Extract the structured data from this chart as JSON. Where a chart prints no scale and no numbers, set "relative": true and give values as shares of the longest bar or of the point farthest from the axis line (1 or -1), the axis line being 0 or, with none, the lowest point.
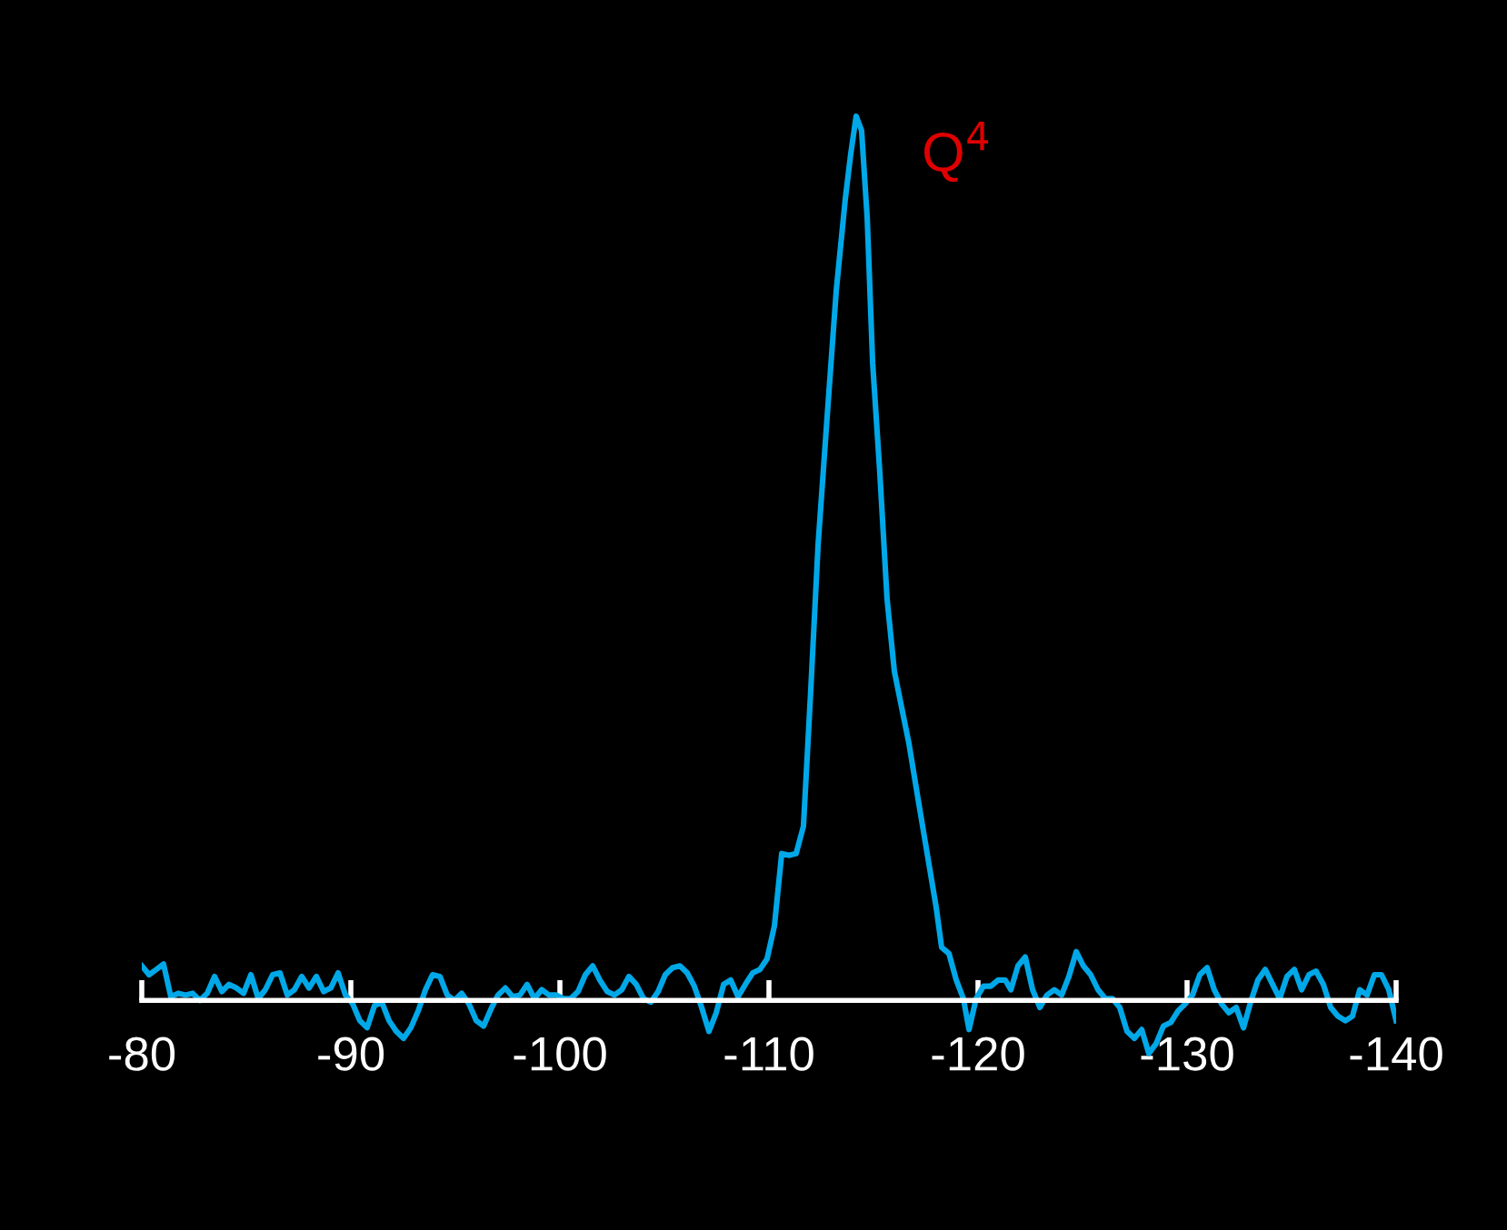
{
  "chart_data": {
    "type": "line",
    "relative": true,
    "xlim": [
      -80,
      -140
    ],
    "xticks": [
      -80,
      -90,
      -100,
      -110,
      -120,
      -130,
      -140
    ],
    "marker": "none",
    "line_style": "solid",
    "annotations": [
      {
        "text": "Q$^{4}$",
        "x": -114.17,
        "y": 1.0
      }
    ],
    "series": [
      {
        "color": "#00a8e8",
        "x": [
          -80.0,
          -80.35,
          -80.7,
          -81.04,
          -81.39,
          -81.74,
          -82.09,
          -82.43,
          -82.78,
          -83.13,
          -83.48,
          -83.83,
          -84.17,
          -84.52,
          -84.87,
          -85.22,
          -85.57,
          -85.91,
          -86.26,
          -86.61,
          -86.96,
          -87.3,
          -87.65,
          -88.0,
          -88.35,
          -88.7,
          -89.04,
          -89.39,
          -89.74,
          -90.09,
          -90.43,
          -90.78,
          -91.13,
          -91.48,
          -91.83,
          -92.17,
          -92.52,
          -92.87,
          -93.22,
          -93.57,
          -93.91,
          -94.26,
          -94.61,
          -94.96,
          -95.3,
          -95.65,
          -96.0,
          -96.35,
          -96.7,
          -97.04,
          -97.39,
          -97.74,
          -98.09,
          -98.43,
          -98.78,
          -99.13,
          -99.48,
          -99.83,
          -100.17,
          -100.52,
          -100.87,
          -101.22,
          -101.57,
          -101.91,
          -102.26,
          -102.61,
          -102.96,
          -103.3,
          -103.65,
          -104.0,
          -104.35,
          -104.7,
          -105.04,
          -105.39,
          -105.74,
          -106.09,
          -106.43,
          -106.78,
          -107.13,
          -107.48,
          -107.83,
          -108.17,
          -108.52,
          -108.87,
          -109.22,
          -109.57,
          -109.91,
          -110.26,
          -110.61,
          -110.96,
          -111.3,
          -111.65,
          -112.0,
          -112.35,
          -112.78,
          -113.22,
          -113.65,
          -113.91,
          -114.17,
          -114.43,
          -114.7,
          -114.96,
          -115.3,
          -115.65,
          -116.0,
          -116.35,
          -116.7,
          -117.13,
          -117.57,
          -118.0,
          -118.26,
          -118.61,
          -118.96,
          -119.3,
          -119.57,
          -119.91,
          -120.26,
          -120.61,
          -120.96,
          -121.3,
          -121.57,
          -121.91,
          -122.26,
          -122.61,
          -122.96,
          -123.3,
          -123.65,
          -124.0,
          -124.35,
          -124.7,
          -125.04,
          -125.39,
          -125.74,
          -126.09,
          -126.43,
          -126.78,
          -127.13,
          -127.48,
          -127.83,
          -128.17,
          -128.52,
          -128.87,
          -129.22,
          -129.57,
          -129.91,
          -130.26,
          -130.61,
          -130.96,
          -131.3,
          -131.65,
          -132.0,
          -132.35,
          -132.7,
          -133.04,
          -133.39,
          -133.74,
          -134.09,
          -134.43,
          -134.78,
          -135.13,
          -135.48,
          -135.83,
          -136.17,
          -136.52,
          -136.87,
          -137.22,
          -137.57,
          -137.91,
          -138.26,
          -138.61,
          -138.96,
          -139.3,
          -139.65,
          -140.0
        ],
        "values": [
          0.039,
          0.029,
          0.035,
          0.041,
          0.004,
          0.008,
          0.006,
          0.008,
          0,
          0.008,
          0.027,
          0.01,
          0.018,
          0.014,
          0.008,
          0.029,
          0.002,
          0.012,
          0.029,
          0.031,
          0.006,
          0.012,
          0.027,
          0.014,
          0.027,
          0.01,
          0.014,
          0.031,
          0.006,
          -0.004,
          -0.023,
          -0.031,
          -0.006,
          -0.002,
          -0.023,
          -0.035,
          -0.043,
          -0.031,
          -0.012,
          0.012,
          0.029,
          0.027,
          0.006,
          0,
          0.008,
          -0.004,
          -0.023,
          -0.029,
          -0.01,
          0.006,
          0.014,
          0.004,
          0.006,
          0.018,
          0.002,
          0.012,
          0.006,
          0.006,
          0.002,
          0.002,
          0.01,
          0.029,
          0.039,
          0.023,
          0.01,
          0.006,
          0.012,
          0.027,
          0.018,
          0.002,
          -0.002,
          0.01,
          0.029,
          0.037,
          0.039,
          0.031,
          0.016,
          -0.008,
          -0.035,
          -0.014,
          0.018,
          0.023,
          0.004,
          0.018,
          0.031,
          0.035,
          0.047,
          0.084,
          0.166,
          0.164,
          0.166,
          0.197,
          0.351,
          0.515,
          0.659,
          0.803,
          0.906,
          0.957,
          1.0,
          0.984,
          0.885,
          0.721,
          0.598,
          0.454,
          0.372,
          0.331,
          0.29,
          0.228,
          0.166,
          0.105,
          0.06,
          0.053,
          0.023,
          0.002,
          -0.033,
          0.002,
          0.016,
          0.016,
          0.023,
          0.023,
          0.012,
          0.039,
          0.049,
          0.012,
          -0.008,
          0.006,
          0.012,
          0.006,
          0.027,
          0.055,
          0.039,
          0.029,
          0.012,
          0.002,
          0.002,
          -0.008,
          -0.035,
          -0.043,
          -0.033,
          -0.06,
          -0.049,
          -0.029,
          -0.025,
          -0.012,
          -0.004,
          0.006,
          0.029,
          0.037,
          0.012,
          -0.004,
          -0.014,
          -0.008,
          -0.031,
          -0.002,
          0.023,
          0.035,
          0.018,
          0.002,
          0.027,
          0.035,
          0.012,
          0.029,
          0.033,
          0.018,
          -0.008,
          -0.018,
          -0.023,
          -0.018,
          0.012,
          0.006,
          0.029,
          0.029,
          0.012,
          -0.023
        ]
      }
    ]
  }
}
